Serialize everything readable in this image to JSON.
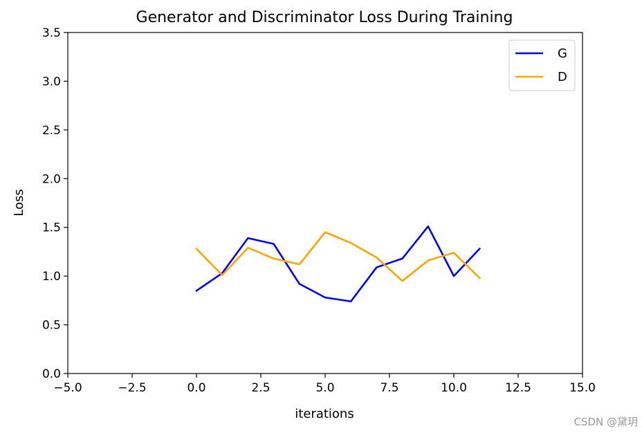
{
  "chart_data": {
    "type": "line",
    "title": "Generator and Discriminator Loss During Training",
    "xlabel": "iterations",
    "ylabel": "Loss",
    "xlim": [
      -5,
      15
    ],
    "ylim": [
      0,
      3.5
    ],
    "xticks": [
      -5.0,
      -2.5,
      0.0,
      2.5,
      5.0,
      7.5,
      10.0,
      12.5,
      15.0
    ],
    "xtick_labels": [
      "−5.0",
      "−2.5",
      "0.0",
      "2.5",
      "5.0",
      "7.5",
      "10.0",
      "12.5",
      "15.0"
    ],
    "yticks": [
      0.0,
      0.5,
      1.0,
      1.5,
      2.0,
      2.5,
      3.0,
      3.5
    ],
    "ytick_labels": [
      "0.0",
      "0.5",
      "1.0",
      "1.5",
      "2.0",
      "2.5",
      "3.0",
      "3.5"
    ],
    "grid": false,
    "legend_position": "top-right",
    "x": [
      0,
      1,
      2,
      3,
      4,
      5,
      6,
      7,
      8,
      9,
      10,
      11
    ],
    "series": [
      {
        "name": "G",
        "color": "#0000ff",
        "values": [
          0.85,
          1.03,
          1.39,
          1.33,
          0.92,
          0.78,
          0.74,
          1.09,
          1.18,
          1.51,
          1.0,
          1.28
        ]
      },
      {
        "name": "D",
        "color": "#ffa500",
        "values": [
          1.28,
          1.01,
          1.29,
          1.18,
          1.12,
          1.45,
          1.34,
          1.19,
          0.95,
          1.16,
          1.24,
          0.98
        ]
      }
    ]
  },
  "watermark": "CSDN @黛玥"
}
